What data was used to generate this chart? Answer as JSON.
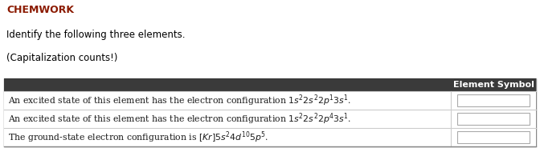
{
  "title": "CHEMWORK",
  "title_color": "#8B1A00",
  "instruction_line1": "Identify the following three elements.",
  "instruction_line2": "(Capitalization counts!)",
  "instruction_color": "#000000",
  "header_text": "Element Symbol",
  "header_bg": "#3a3a3a",
  "header_text_color": "#ffffff",
  "rows": [
    "An excited state of this element has the electron configuration $1s^22s^22p^13s^1$.",
    "An excited state of this element has the electron configuration $1s^22s^22p^43s^1$.",
    "The ground-state electron configuration is $[Kr]5s^24d^{10}5p^5$."
  ],
  "row_colors": [
    "#ffffff",
    "#ffffff",
    "#ffffff"
  ],
  "input_box_border": "#aaaaaa",
  "bg_color": "#ffffff",
  "table_border_color": "#888888",
  "divider_color": "#cccccc"
}
